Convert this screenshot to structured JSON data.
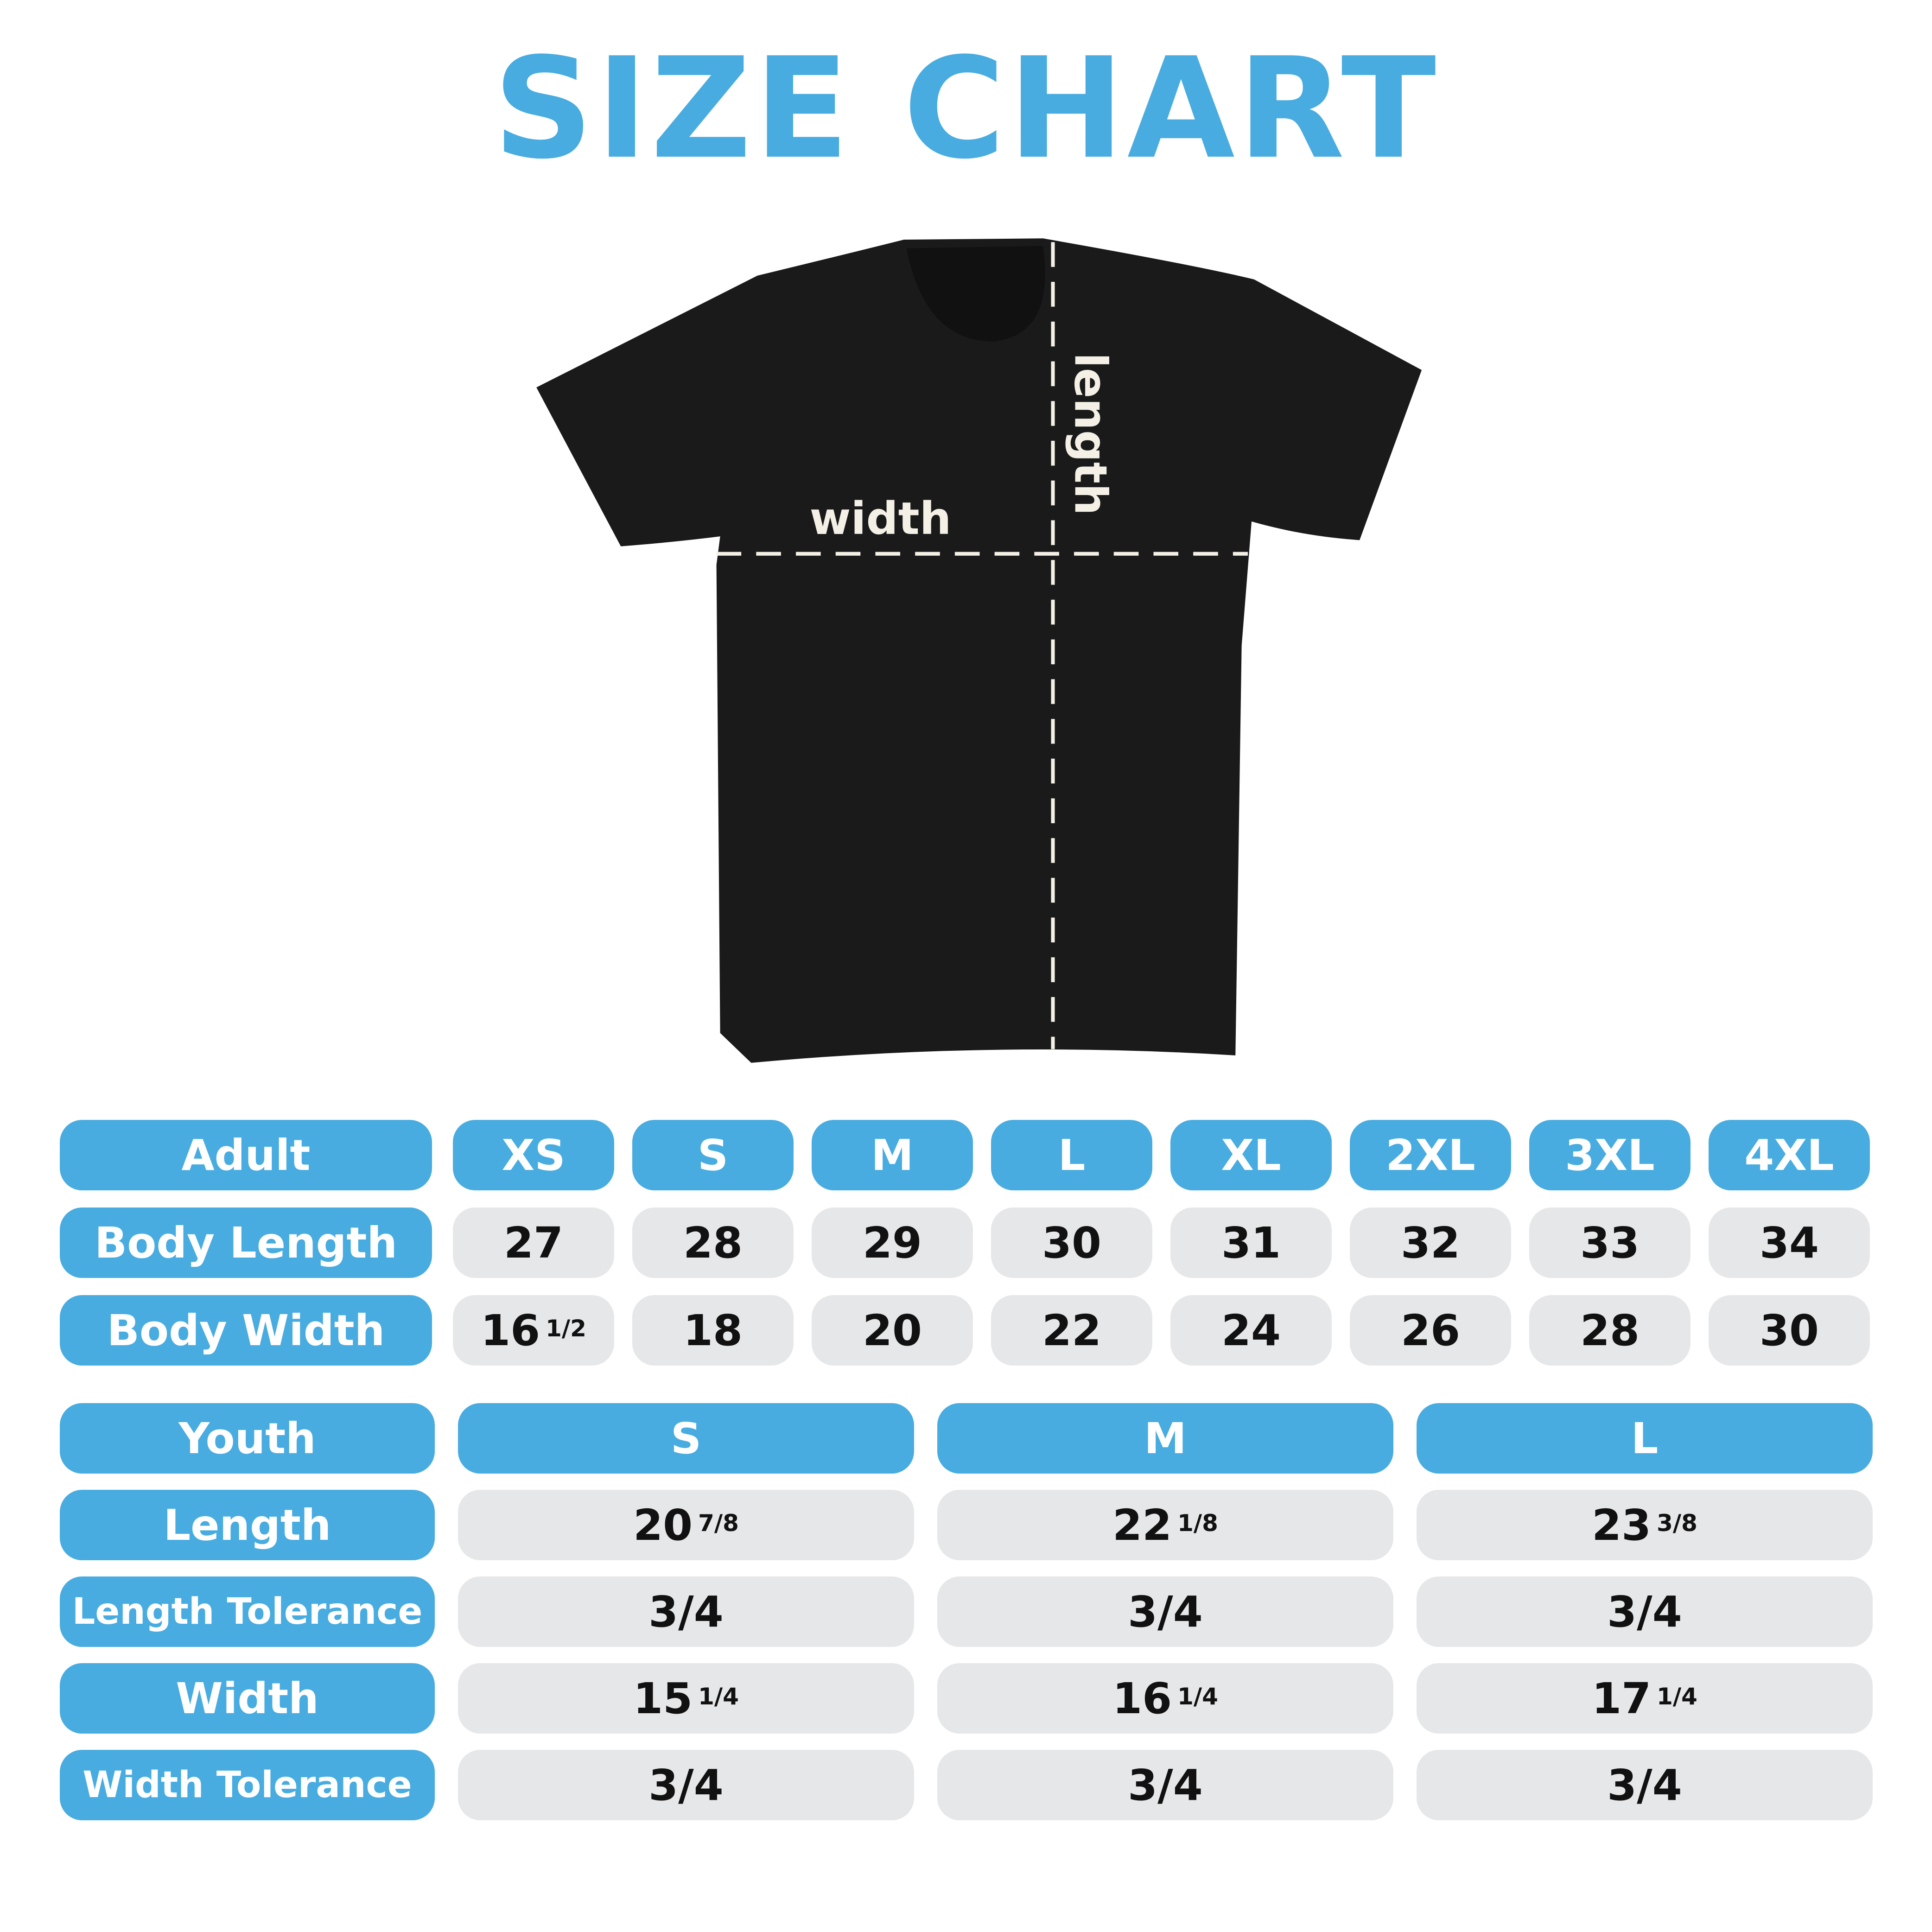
{
  "title": "SIZE CHART",
  "shirt": {
    "width_label": "width",
    "length_label": "length",
    "color": "#1a1a1a"
  },
  "colors": {
    "accent": "#48ace0",
    "cell": "#e6e7e8"
  },
  "adult": {
    "header": "Adult",
    "sizes": [
      "XS",
      "S",
      "M",
      "L",
      "XL",
      "2XL",
      "3XL",
      "4XL"
    ],
    "rows": [
      {
        "label": "Body Length",
        "values": [
          [
            "27",
            ""
          ],
          [
            "28",
            ""
          ],
          [
            "29",
            ""
          ],
          [
            "30",
            ""
          ],
          [
            "31",
            ""
          ],
          [
            "32",
            ""
          ],
          [
            "33",
            ""
          ],
          [
            "34",
            ""
          ]
        ]
      },
      {
        "label": "Body Width",
        "values": [
          [
            "16",
            "1/2"
          ],
          [
            "18",
            ""
          ],
          [
            "20",
            ""
          ],
          [
            "22",
            ""
          ],
          [
            "24",
            ""
          ],
          [
            "26",
            ""
          ],
          [
            "28",
            ""
          ],
          [
            "30",
            ""
          ]
        ]
      }
    ]
  },
  "youth": {
    "header": "Youth",
    "sizes": [
      "S",
      "M",
      "L"
    ],
    "rows": [
      {
        "label": "Length",
        "values": [
          [
            "20",
            "7/8"
          ],
          [
            "22",
            "1/8"
          ],
          [
            "23",
            "3/8"
          ]
        ]
      },
      {
        "label": "Length Tolerance",
        "values": [
          [
            "3/4",
            ""
          ],
          [
            "3/4",
            ""
          ],
          [
            "3/4",
            ""
          ]
        ]
      },
      {
        "label": "Width",
        "values": [
          [
            "15",
            "1/4"
          ],
          [
            "16",
            "1/4"
          ],
          [
            "17",
            "1/4"
          ]
        ]
      },
      {
        "label": "Width Tolerance",
        "values": [
          [
            "3/4",
            ""
          ],
          [
            "3/4",
            ""
          ],
          [
            "3/4",
            ""
          ]
        ]
      }
    ]
  }
}
